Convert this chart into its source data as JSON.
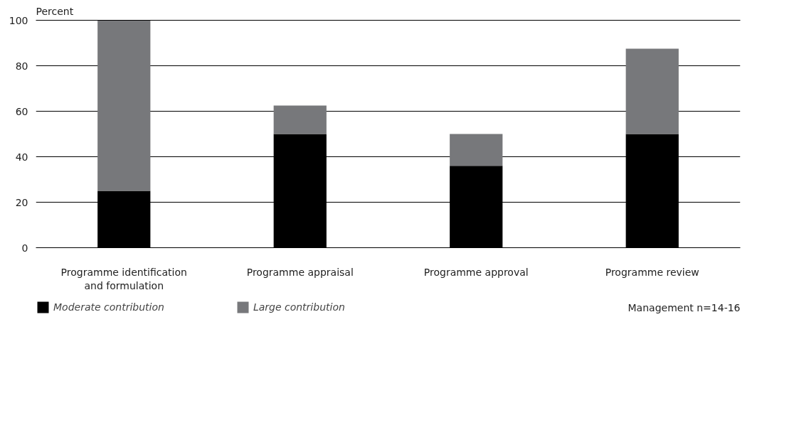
{
  "chart_data": {
    "type": "bar",
    "stacked": true,
    "ylabel": "Percent",
    "categories": [
      "Programme identification\nand formulation",
      "Programme appraisal",
      "Programme approval",
      "Programme review"
    ],
    "series": [
      {
        "name": "Moderate contribution",
        "color": "#000000",
        "values": [
          25,
          50,
          36,
          50
        ]
      },
      {
        "name": "Large contribution",
        "color": "#77787b",
        "values": [
          75,
          12.5,
          14,
          37.5
        ]
      }
    ],
    "ylim": [
      0,
      100
    ],
    "yticks": [
      0,
      20,
      40,
      60,
      80,
      100
    ],
    "grid": "y",
    "legend": "bottom left",
    "annotations": [
      "Management n=14-16"
    ]
  }
}
